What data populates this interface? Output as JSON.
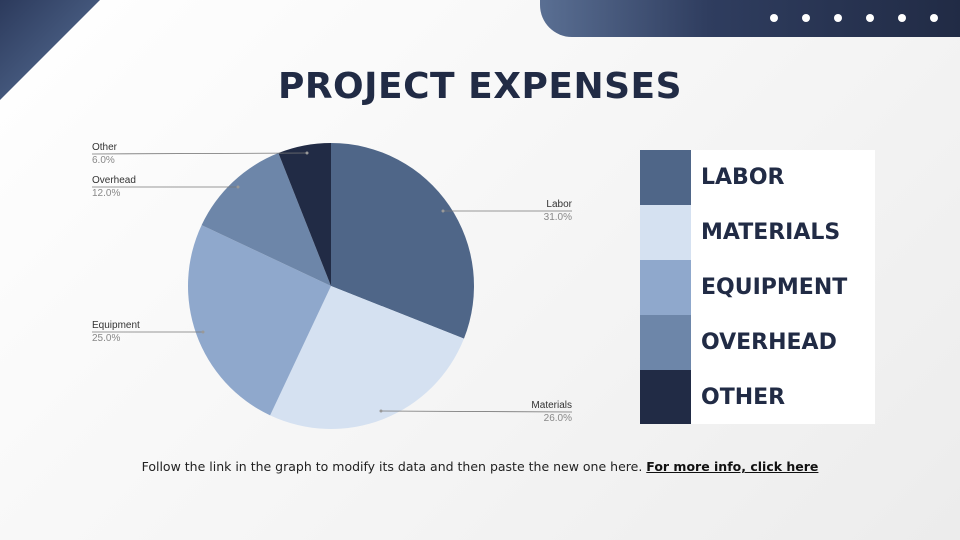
{
  "title": "PROJECT EXPENSES",
  "chart_data": {
    "type": "pie",
    "categories": [
      "Labor",
      "Materials",
      "Equipment",
      "Overhead",
      "Other"
    ],
    "values": [
      31.0,
      26.0,
      25.0,
      12.0,
      6.0
    ],
    "value_labels": [
      "31.0%",
      "26.0%",
      "25.0%",
      "12.0%",
      "6.0%"
    ],
    "colors": [
      "#4f6688",
      "#d5e1f1",
      "#8fa8cc",
      "#6d86a9",
      "#212b45"
    ]
  },
  "legend": {
    "items": [
      {
        "label": "LABOR",
        "color": "#4f6688"
      },
      {
        "label": "MATERIALS",
        "color": "#d5e1f1"
      },
      {
        "label": "EQUIPMENT",
        "color": "#8fa8cc"
      },
      {
        "label": "OVERHEAD",
        "color": "#6d86a9"
      },
      {
        "label": "OTHER",
        "color": "#212b45"
      }
    ]
  },
  "footer": {
    "text": "Follow the link in the graph to modify its data and then paste the new one here.",
    "link": "For more info, click here"
  }
}
